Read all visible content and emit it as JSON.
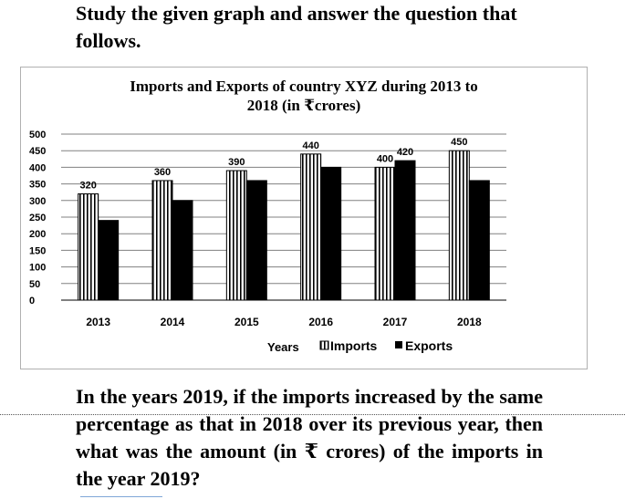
{
  "intro_text": "Study the given graph and answer the question that follows.",
  "chart_data": {
    "type": "bar",
    "title_line1": "Imports and Exports of country XYZ during 2013 to",
    "title_line2": "2018 (in ₹crores)",
    "xlabel": "Years",
    "categories": [
      "2013",
      "2014",
      "2015",
      "2016",
      "2017",
      "2018"
    ],
    "series": [
      {
        "name": "Imports",
        "pattern": "vertical-stripes",
        "values": [
          320,
          360,
          390,
          440,
          400,
          450
        ]
      },
      {
        "name": "Exports",
        "color": "#000000",
        "values": [
          240,
          300,
          360,
          400,
          420,
          360
        ]
      }
    ],
    "yticks": [
      "0",
      "50",
      "100",
      "150",
      "200",
      "250",
      "300",
      "350",
      "400",
      "450",
      "500"
    ],
    "ylim": [
      0,
      500
    ],
    "grid": true,
    "legend_position": "bottom"
  },
  "question_text": "In the years 2019, if the imports increased by the same percentage as that in 2018 over its previous year, then what was the amount (in ₹ crores) of the imports in the year 2019?"
}
